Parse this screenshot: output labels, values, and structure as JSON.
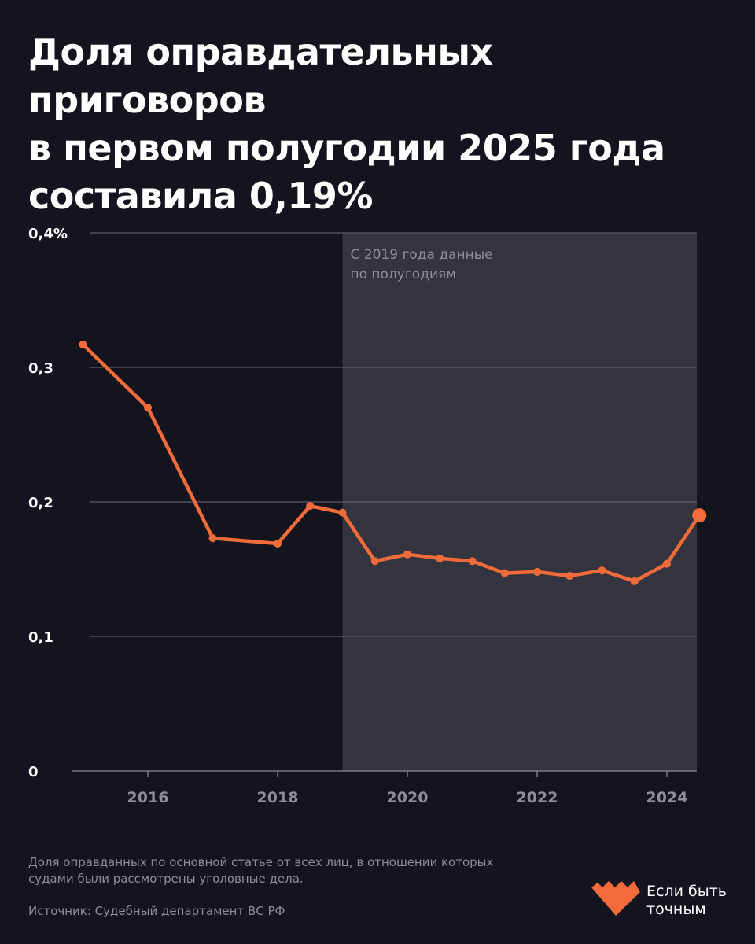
{
  "title_lines": [
    "Доля оправдательных приговоров",
    "в первом полугодии 2025 года",
    "составила 0,19%"
  ],
  "chart_data": {
    "type": "line",
    "title": "Доля оправдательных приговоров в первом полугодии 2025 года составила 0,19%",
    "xlabel": "",
    "ylabel": "",
    "ylim": [
      0,
      0.4
    ],
    "xlim": [
      2014.8,
      2024.55
    ],
    "y_ticks": [
      0,
      0.1,
      0.2,
      0.3,
      0.4
    ],
    "y_tick_labels": [
      "0",
      "0,1",
      "0,2",
      "0,3",
      "0,4%"
    ],
    "x_ticks": [
      2016,
      2018,
      2020,
      2022,
      2024
    ],
    "x_tick_labels": [
      "2016",
      "2018",
      "2020",
      "2022",
      "2024"
    ],
    "grid": true,
    "shaded_region": {
      "from": 2019,
      "to": 2024.55,
      "label_lines": [
        "С 2019 года данные",
        "по полугодиям"
      ]
    },
    "series": [
      {
        "name": "Доля оправдательных приговоров, %",
        "color": "#f26b3a",
        "x": [
          2015,
          2016,
          2017,
          2018,
          2018.5,
          2019,
          2019.5,
          2020,
          2020.5,
          2021,
          2021.5,
          2022,
          2022.5,
          2023,
          2023.5,
          2024,
          2024.5
        ],
        "y": [
          0.317,
          0.27,
          0.173,
          0.169,
          0.197,
          0.192,
          0.156,
          0.161,
          0.158,
          0.156,
          0.147,
          0.148,
          0.145,
          0.149,
          0.141,
          0.154,
          0.19
        ]
      }
    ]
  },
  "footer": {
    "note_lines": [
      "Доля оправданных по основной статье от всех лиц, в отношении которых",
      "судами были рассмотрены уголовные дела."
    ],
    "source": "Источник: Судебный департамент ВС РФ",
    "logo_lines": [
      "Если быть",
      "точным"
    ]
  },
  "colors": {
    "background": "#14141f",
    "shade": "#34343e",
    "accent": "#f26b3a",
    "grid": "#5a5a64"
  }
}
